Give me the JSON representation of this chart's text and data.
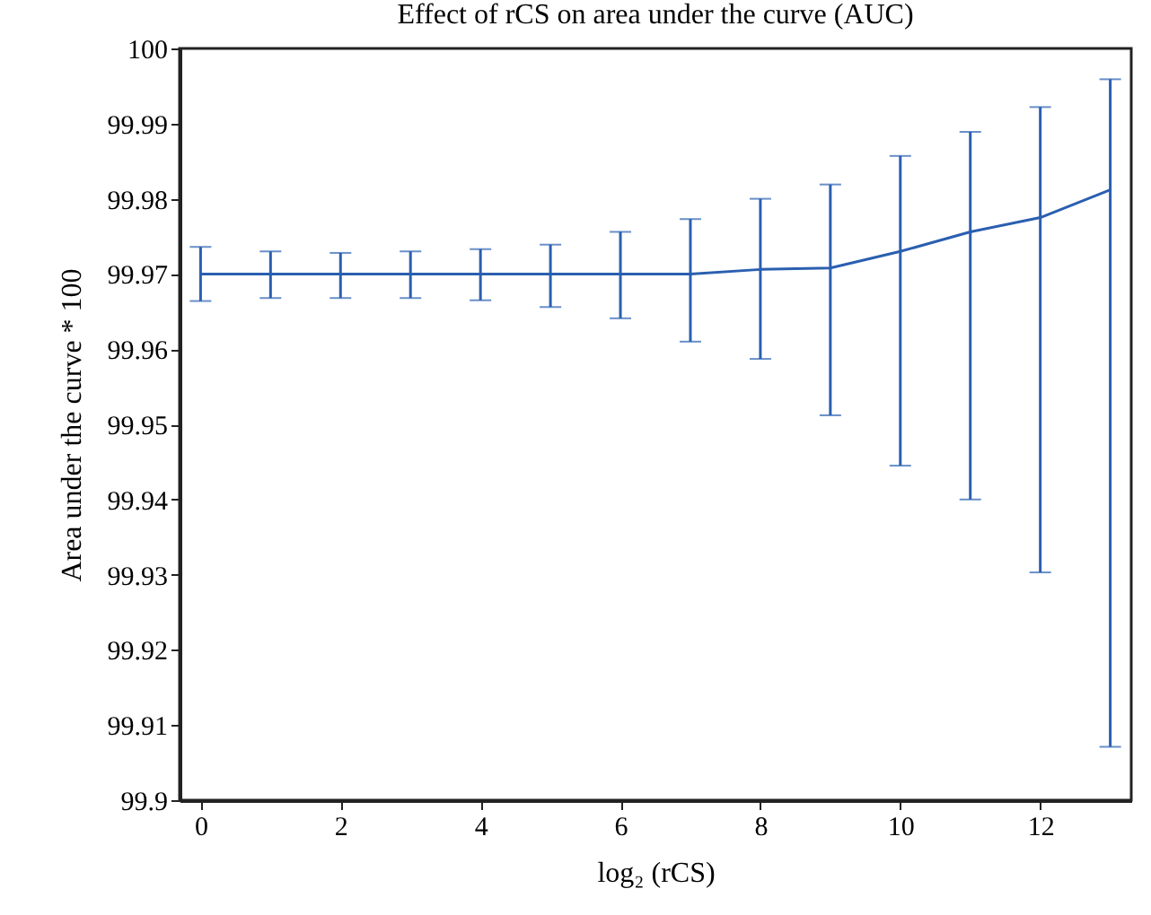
{
  "chart_data": {
    "type": "line",
    "title": "Effect of rCS on area under the curve (AUC)",
    "xlabel": "log₂ (rCS)",
    "ylabel": "Area under the curve * 100",
    "x": [
      0,
      1,
      2,
      3,
      4,
      5,
      6,
      7,
      8,
      9,
      10,
      11,
      12,
      13
    ],
    "series": [
      {
        "color": "#2a5fb0",
        "values": [
          99.97,
          99.97,
          99.97,
          99.97,
          99.97,
          99.97,
          99.97,
          99.97,
          99.9706,
          99.9708,
          99.973,
          99.9756,
          99.9775,
          99.9812
        ],
        "errors": [
          [
            99.9664,
            99.9736
          ],
          [
            99.9668,
            99.973
          ],
          [
            99.9668,
            99.9728
          ],
          [
            99.9668,
            99.973
          ],
          [
            99.9665,
            99.9733
          ],
          [
            99.9656,
            99.9739
          ],
          [
            99.9641,
            99.9756
          ],
          [
            99.961,
            99.9773
          ],
          [
            99.9587,
            99.98
          ],
          [
            99.9512,
            99.9819
          ],
          [
            99.9445,
            99.9857
          ],
          [
            99.94,
            99.9889
          ],
          [
            99.9303,
            99.9922
          ],
          [
            99.9071,
            99.9959
          ]
        ]
      }
    ],
    "xlim": [
      -0.3,
      13.3
    ],
    "xticks": [
      0,
      2,
      4,
      6,
      8,
      10,
      12
    ],
    "ylim": [
      99.9,
      100
    ],
    "yticks": [
      99.9,
      99.91,
      99.92,
      99.93,
      99.94,
      99.95,
      99.96,
      99.97,
      99.98,
      99.99,
      100
    ],
    "grid": false,
    "marker": "none",
    "line_style": "solid"
  }
}
